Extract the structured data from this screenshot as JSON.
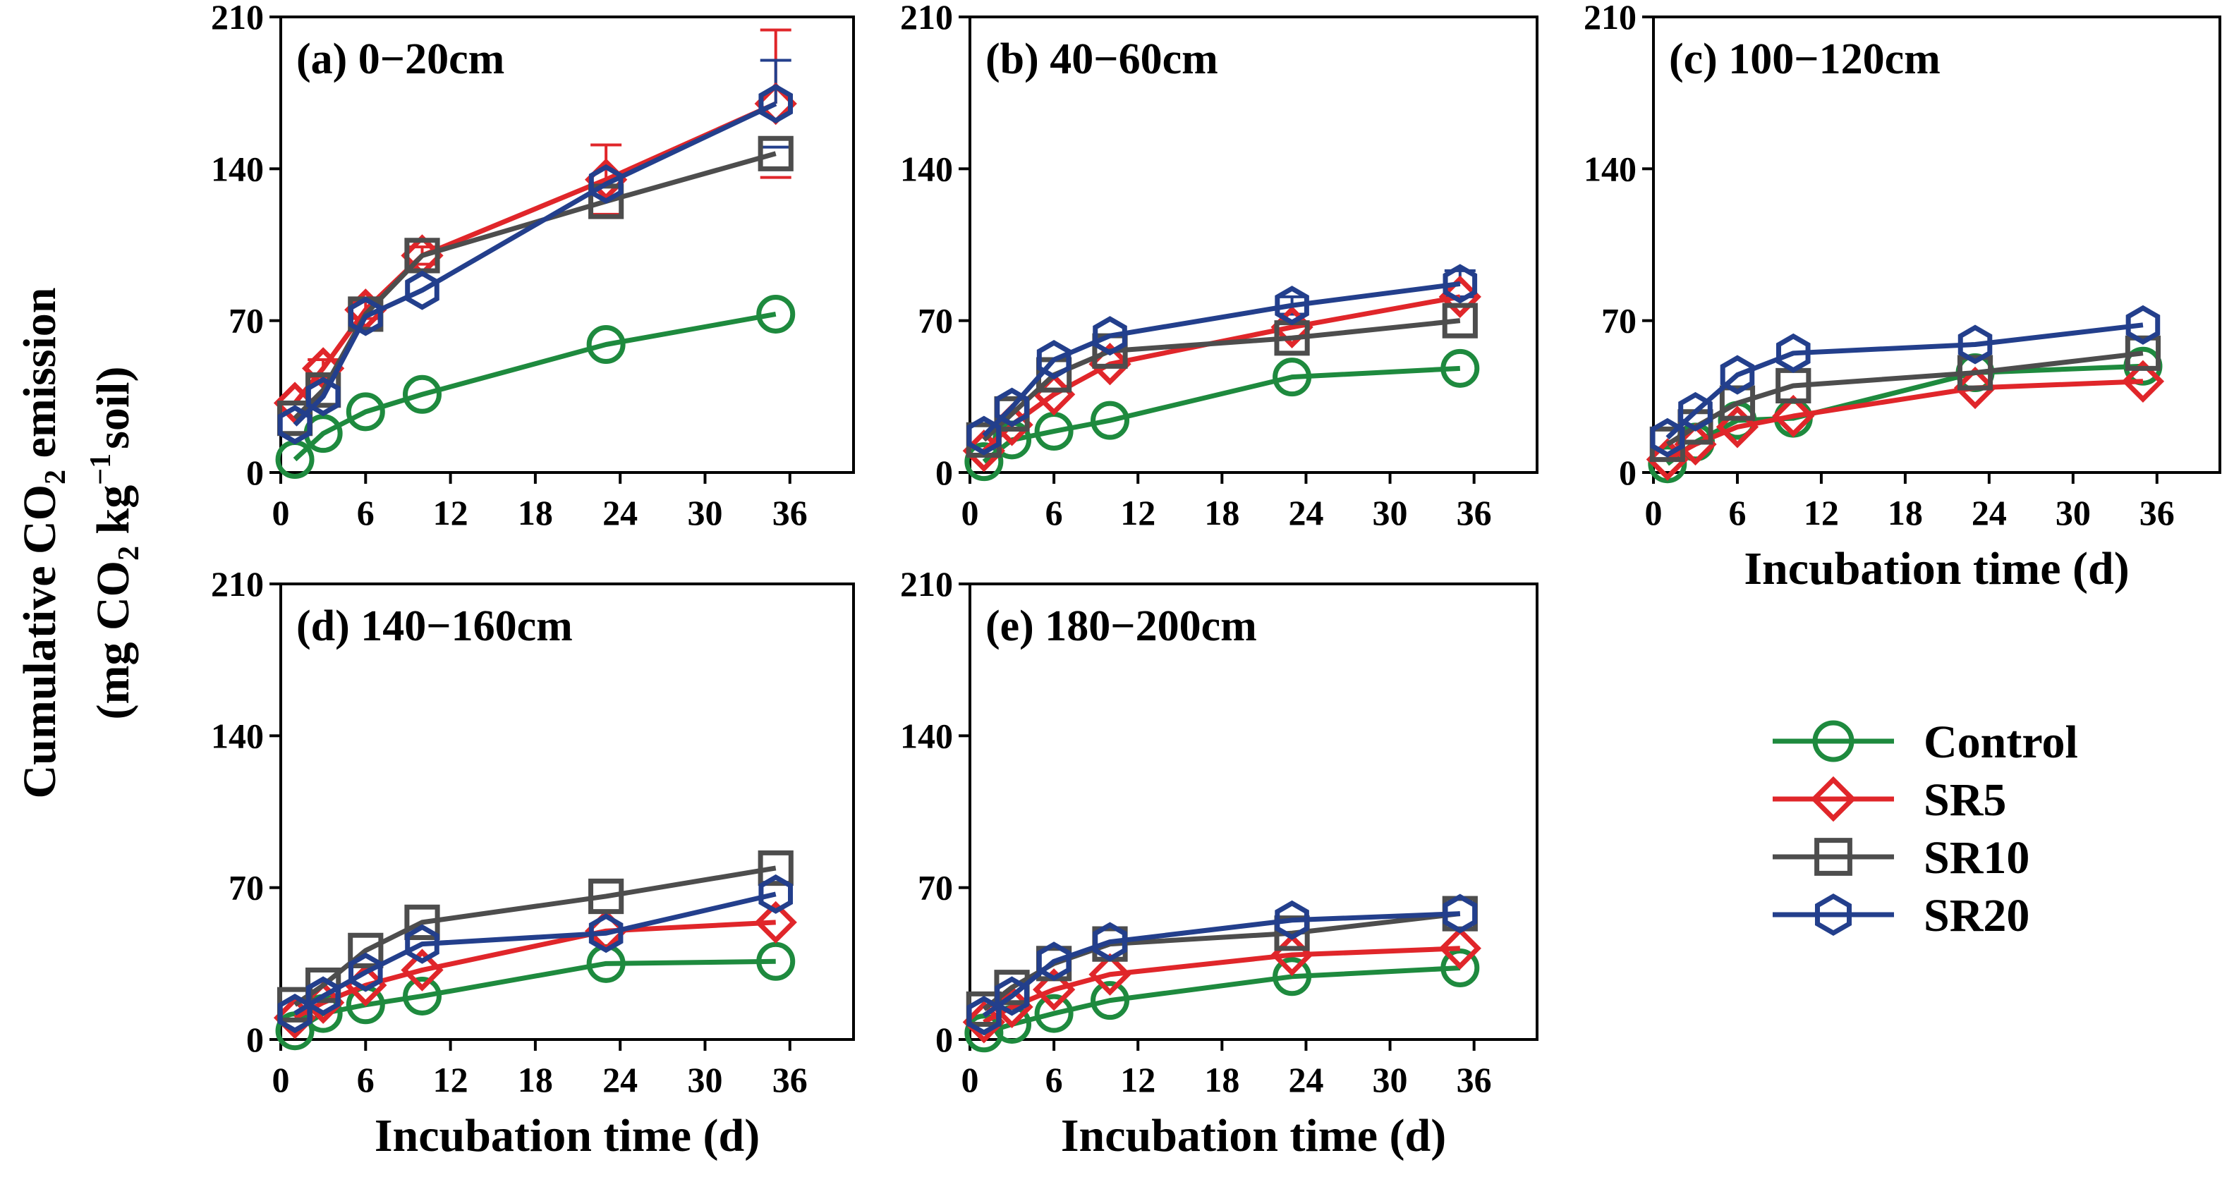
{
  "chart_data": {
    "type": "line",
    "figure_ylabel_line1": "Cumulative CO",
    "figure_ylabel_line1_sub": "2",
    "figure_ylabel_line1_tail": " emission",
    "figure_ylabel_line2_parts": [
      "(mg CO",
      "2",
      " kg",
      "−1",
      "soil)"
    ],
    "xlabel": "Incubation time (d)",
    "xticks": [
      0,
      6,
      12,
      18,
      24,
      30,
      36
    ],
    "yticks": [
      0,
      70,
      140,
      210
    ],
    "xlim": [
      0,
      40.5
    ],
    "ylim": [
      0,
      210
    ],
    "x": [
      1,
      3,
      6,
      10,
      23,
      35
    ],
    "colors": {
      "Control": "#1e8a3e",
      "SR5": "#e0262a",
      "SR10": "#4d4d4d",
      "SR20": "#233f8c"
    },
    "markers": {
      "Control": "circle",
      "SR5": "diamond",
      "SR10": "square",
      "SR20": "hexagon"
    },
    "legend": [
      "Control",
      "SR5",
      "SR10",
      "SR20"
    ],
    "panels": [
      {
        "title": "(a) 0−20cm",
        "series": [
          {
            "name": "Control",
            "values": [
              6,
              18,
              28,
              36,
              59,
              73
            ]
          },
          {
            "name": "SR5",
            "values": [
              32,
              48,
              75,
              100,
              135,
              170
            ],
            "err": [
              0,
              4,
              4,
              4,
              16,
              34
            ]
          },
          {
            "name": "SR10",
            "values": [
              25,
              38,
              73,
              100,
              125,
              147
            ],
            "err": [
              0,
              0,
              0,
              0,
              0,
              0
            ]
          },
          {
            "name": "SR20",
            "values": [
              22,
              35,
              72,
              84,
              133,
              170
            ],
            "err": [
              0,
              0,
              0,
              0,
              0,
              20
            ]
          }
        ]
      },
      {
        "title": "(b) 40−60cm",
        "series": [
          {
            "name": "Control",
            "values": [
              5,
              15,
              19,
              24,
              44,
              48
            ]
          },
          {
            "name": "SR5",
            "values": [
              10,
              22,
              36,
              50,
              67,
              81
            ]
          },
          {
            "name": "SR10",
            "values": [
              15,
              27,
              45,
              56,
              62,
              70
            ]
          },
          {
            "name": "SR20",
            "values": [
              17,
              30,
              52,
              63,
              77,
              87
            ],
            "err": [
              0,
              0,
              0,
              0,
              4,
              6
            ]
          }
        ]
      },
      {
        "title": "(c) 100−120cm",
        "series": [
          {
            "name": "Control",
            "values": [
              4,
              14,
              24,
              25,
              46,
              49
            ]
          },
          {
            "name": "SR5",
            "values": [
              6,
              13,
              21,
              26,
              39,
              42
            ]
          },
          {
            "name": "SR10",
            "values": [
              13,
              21,
              32,
              40,
              46,
              55
            ]
          },
          {
            "name": "SR20",
            "values": [
              16,
              28,
              45,
              55,
              59,
              68
            ]
          }
        ]
      },
      {
        "title": "(d) 140−160cm",
        "series": [
          {
            "name": "Control",
            "values": [
              4,
              12,
              16,
              20,
              35,
              36
            ]
          },
          {
            "name": "SR5",
            "values": [
              10,
              17,
              25,
              32,
              50,
              54
            ]
          },
          {
            "name": "SR10",
            "values": [
              16,
              25,
              41,
              54,
              66,
              79
            ]
          },
          {
            "name": "SR20",
            "values": [
              12,
              20,
              31,
              44,
              49,
              67
            ]
          }
        ]
      },
      {
        "title": "(e) 180−200cm",
        "series": [
          {
            "name": "Control",
            "values": [
              3,
              7,
              12,
              18,
              29,
              33
            ]
          },
          {
            "name": "SR5",
            "values": [
              8,
              15,
              23,
              30,
              39,
              42
            ]
          },
          {
            "name": "SR10",
            "values": [
              14,
              24,
              35,
              44,
              49,
              58
            ]
          },
          {
            "name": "SR20",
            "values": [
              11,
              20,
              36,
              45,
              55,
              58
            ]
          }
        ]
      }
    ]
  }
}
